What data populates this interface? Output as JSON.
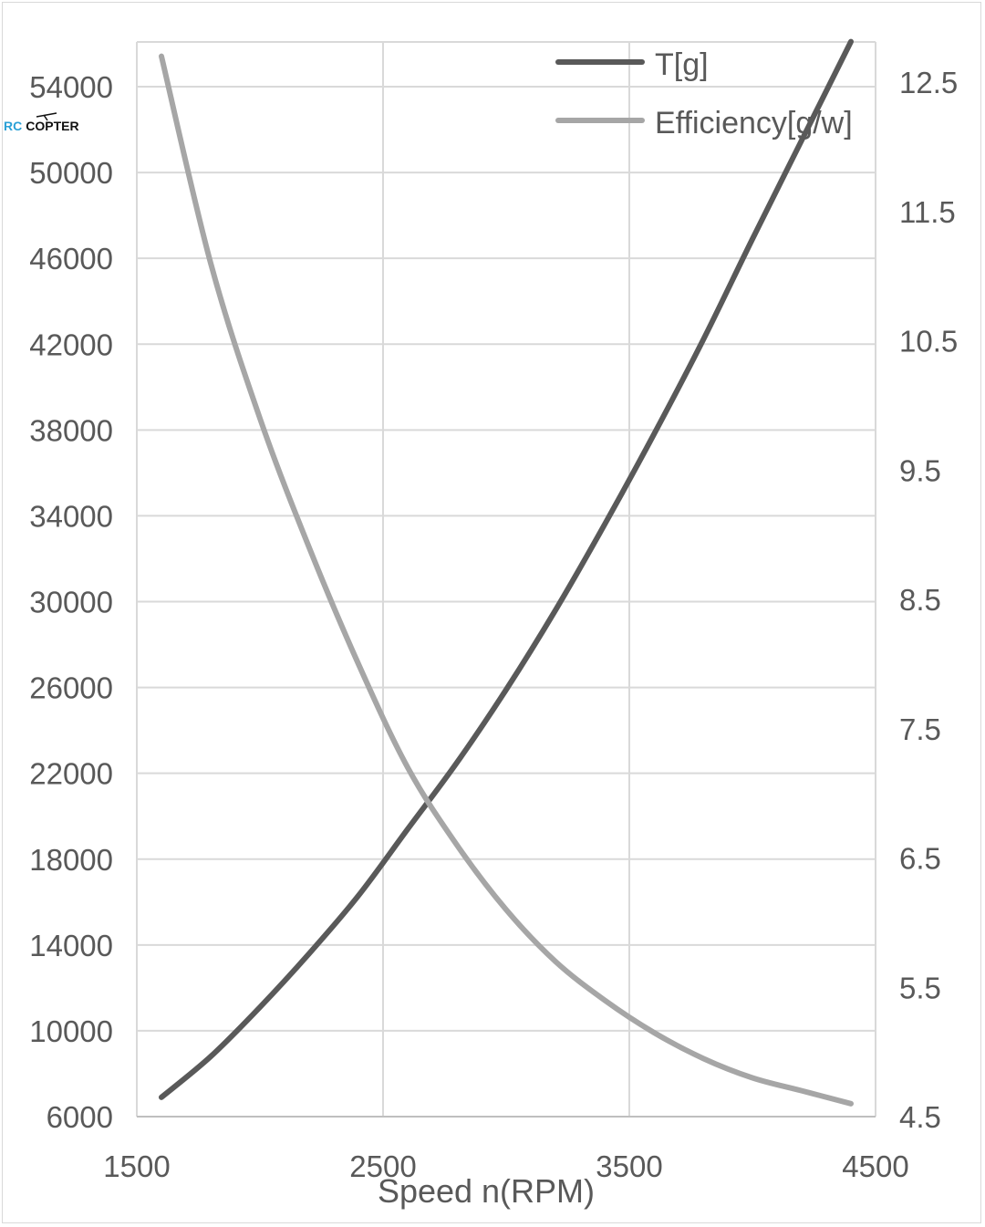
{
  "chart_data": {
    "type": "line",
    "xlabel": "Speed n(RPM)",
    "xlim": [
      1500,
      4500
    ],
    "x_ticks": [
      "1500",
      "2500",
      "3500",
      "4500"
    ],
    "ylim_left": [
      6000,
      56000
    ],
    "y_ticks_left": [
      "6000",
      "10000",
      "14000",
      "18000",
      "22000",
      "26000",
      "30000",
      "34000",
      "38000",
      "42000",
      "46000",
      "50000",
      "54000"
    ],
    "ylim_right": [
      4.5,
      12.9
    ],
    "y_ticks_right": [
      "4.5",
      "5.5",
      "6.5",
      "7.5",
      "8.5",
      "9.5",
      "10.5",
      "11.5",
      "12.5"
    ],
    "grid": true,
    "legend_position": "top-right",
    "x": [
      1600,
      1800,
      2000,
      2200,
      2400,
      2600,
      2800,
      3000,
      3200,
      3400,
      3600,
      3800,
      4000,
      4200,
      4400
    ],
    "series": [
      {
        "name": "T[g]",
        "axis": "left",
        "color": "#595959",
        "values": [
          6900,
          8800,
          11100,
          13600,
          16300,
          19400,
          22500,
          25900,
          29600,
          33600,
          37800,
          42200,
          46900,
          51500,
          56100
        ]
      },
      {
        "name": "Efficiency[g/w]",
        "axis": "right",
        "color": "#a6a6a6",
        "values": [
          12.7,
          11.1,
          9.9,
          8.9,
          8.0,
          7.2,
          6.6,
          6.1,
          5.7,
          5.4,
          5.15,
          4.95,
          4.8,
          4.7,
          4.6
        ]
      }
    ]
  },
  "watermark": {
    "part1": "RC",
    "part2": "COPTER",
    "color1": "#2aa0d6",
    "color2": "#111111"
  }
}
